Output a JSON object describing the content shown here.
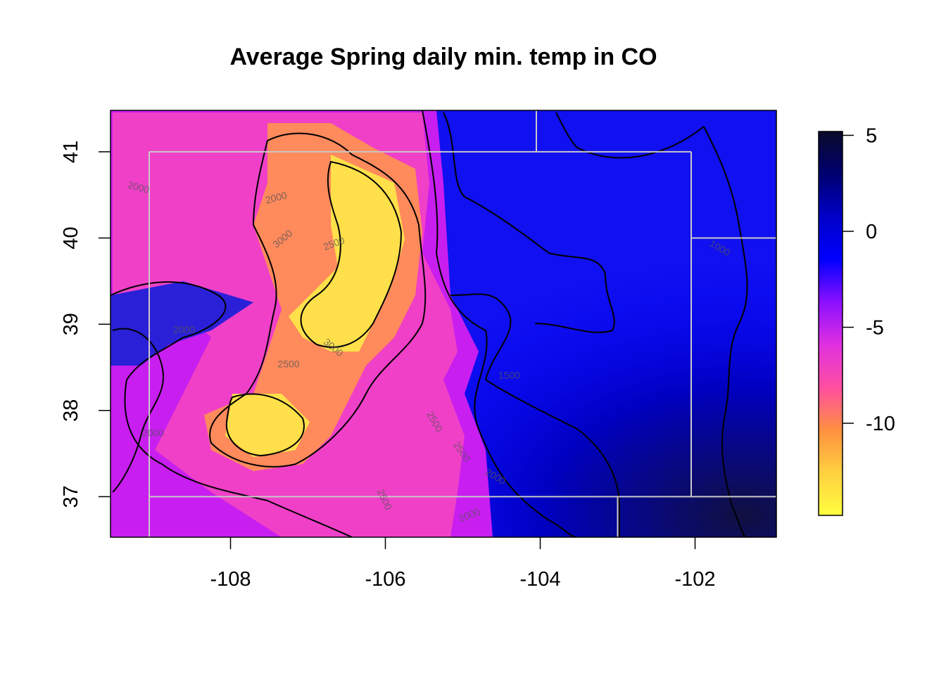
{
  "title": "Average Spring daily min. temp in CO",
  "map": {
    "x_range": [
      -109.55,
      -100.95
    ],
    "y_range": [
      36.53,
      41.48
    ],
    "x_ticks": [
      {
        "value": -108,
        "label": "-108"
      },
      {
        "value": -106,
        "label": "-106"
      },
      {
        "value": -104,
        "label": "-104"
      },
      {
        "value": -102,
        "label": "-102"
      }
    ],
    "y_ticks": [
      {
        "value": 37,
        "label": "37"
      },
      {
        "value": 38,
        "label": "38"
      },
      {
        "value": 39,
        "label": "39"
      },
      {
        "value": 40,
        "label": "40"
      },
      {
        "value": 41,
        "label": "41"
      }
    ],
    "contour_labels": [
      {
        "text": "2000",
        "lon": -109.2,
        "lat": 40.55,
        "angle": 15
      },
      {
        "text": "2000",
        "lon": -107.4,
        "lat": 40.43,
        "angle": -15
      },
      {
        "text": "3000",
        "lon": -107.3,
        "lat": 39.96,
        "angle": -40
      },
      {
        "text": "2500",
        "lon": -106.65,
        "lat": 39.9,
        "angle": -20
      },
      {
        "text": "2000",
        "lon": -108.6,
        "lat": 38.9,
        "angle": 0
      },
      {
        "text": "3000",
        "lon": -106.7,
        "lat": 38.7,
        "angle": 40
      },
      {
        "text": "2500",
        "lon": -107.25,
        "lat": 38.5,
        "angle": 0
      },
      {
        "text": "1500",
        "lon": -104.4,
        "lat": 38.37,
        "angle": 0
      },
      {
        "text": "2000",
        "lon": -109.0,
        "lat": 37.7,
        "angle": 0
      },
      {
        "text": "2500",
        "lon": -105.4,
        "lat": 37.85,
        "angle": 60
      },
      {
        "text": "2500",
        "lon": -105.05,
        "lat": 37.5,
        "angle": 55
      },
      {
        "text": "2000",
        "lon": -104.6,
        "lat": 37.2,
        "angle": 30
      },
      {
        "text": "2500",
        "lon": -106.05,
        "lat": 36.95,
        "angle": 65
      },
      {
        "text": "2000",
        "lon": -104.9,
        "lat": 36.75,
        "angle": -20
      },
      {
        "text": "1000",
        "lon": -101.7,
        "lat": 39.85,
        "angle": 30
      }
    ]
  },
  "colorbar": {
    "min": -14.8,
    "max": 5.2,
    "ticks": [
      {
        "value": 5,
        "label": "5"
      },
      {
        "value": 0,
        "label": "0"
      },
      {
        "value": -5,
        "label": "-5"
      },
      {
        "value": -10,
        "label": "-10"
      }
    ],
    "colors": [
      "#FFFF40",
      "#FFD040",
      "#FF9040",
      "#FF4FA0",
      "#E030E0",
      "#8A10FF",
      "#0000FF",
      "#0000C8",
      "#000070",
      "#0A0A2A"
    ]
  }
}
